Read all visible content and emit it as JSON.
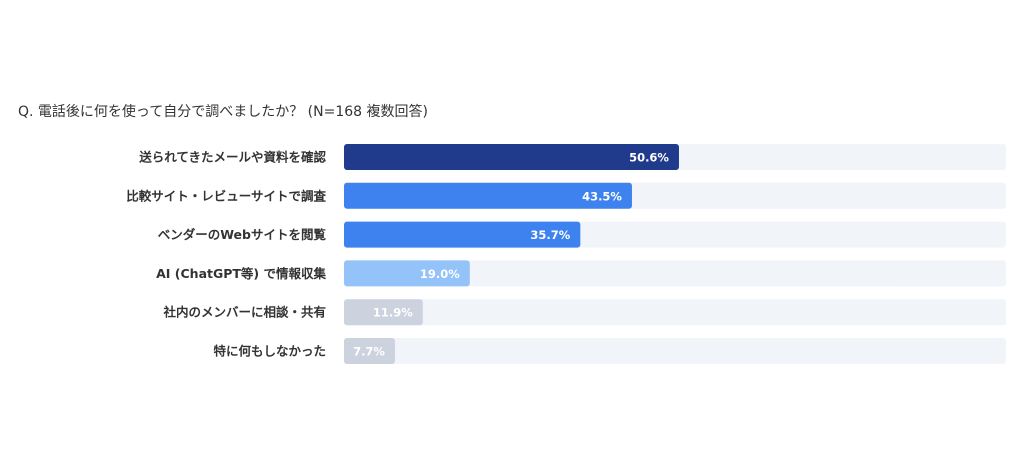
{
  "chart_data": {
    "type": "bar",
    "orientation": "horizontal",
    "title": "Q. 電話後に何を使って自分で調べましたか？ (N=168 複数回答)",
    "categories": [
      "送られてきたメールや資料を確認",
      "比較サイト・レビューサイトで調査",
      "ベンダーのWebサイトを閲覧",
      "AI (ChatGPT等) で情報収集",
      "社内のメンバーに相談・共有",
      "特に何もしなかった"
    ],
    "values": [
      50.6,
      43.5,
      35.7,
      19.0,
      11.9,
      7.7
    ],
    "value_labels": [
      "50.6%",
      "43.5%",
      "35.7%",
      "19.0%",
      "11.9%",
      "7.7%"
    ],
    "colors": [
      "#213b8c",
      "#3d82ef",
      "#3d82ef",
      "#93c3f8",
      "#ccd3df",
      "#ccd3df"
    ],
    "track_color": "#f1f4f8",
    "xlim": [
      0,
      100
    ]
  }
}
